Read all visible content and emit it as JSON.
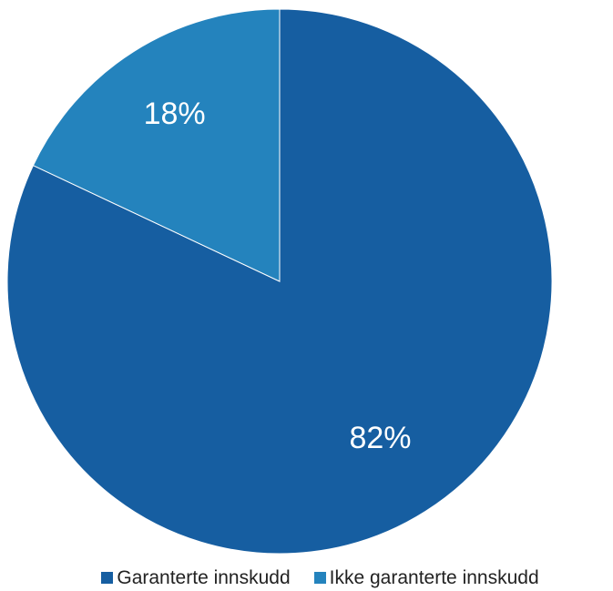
{
  "chart_data": {
    "type": "pie",
    "categories": [
      "Garanterte innskudd",
      "Ikke garanterte innskudd"
    ],
    "values": [
      82,
      18
    ],
    "data_labels": [
      "82%",
      "18%"
    ],
    "colors": [
      "#165ea1",
      "#2483bd"
    ],
    "start": "12 o'clock, clockwise",
    "legend_position": "bottom",
    "title": ""
  }
}
